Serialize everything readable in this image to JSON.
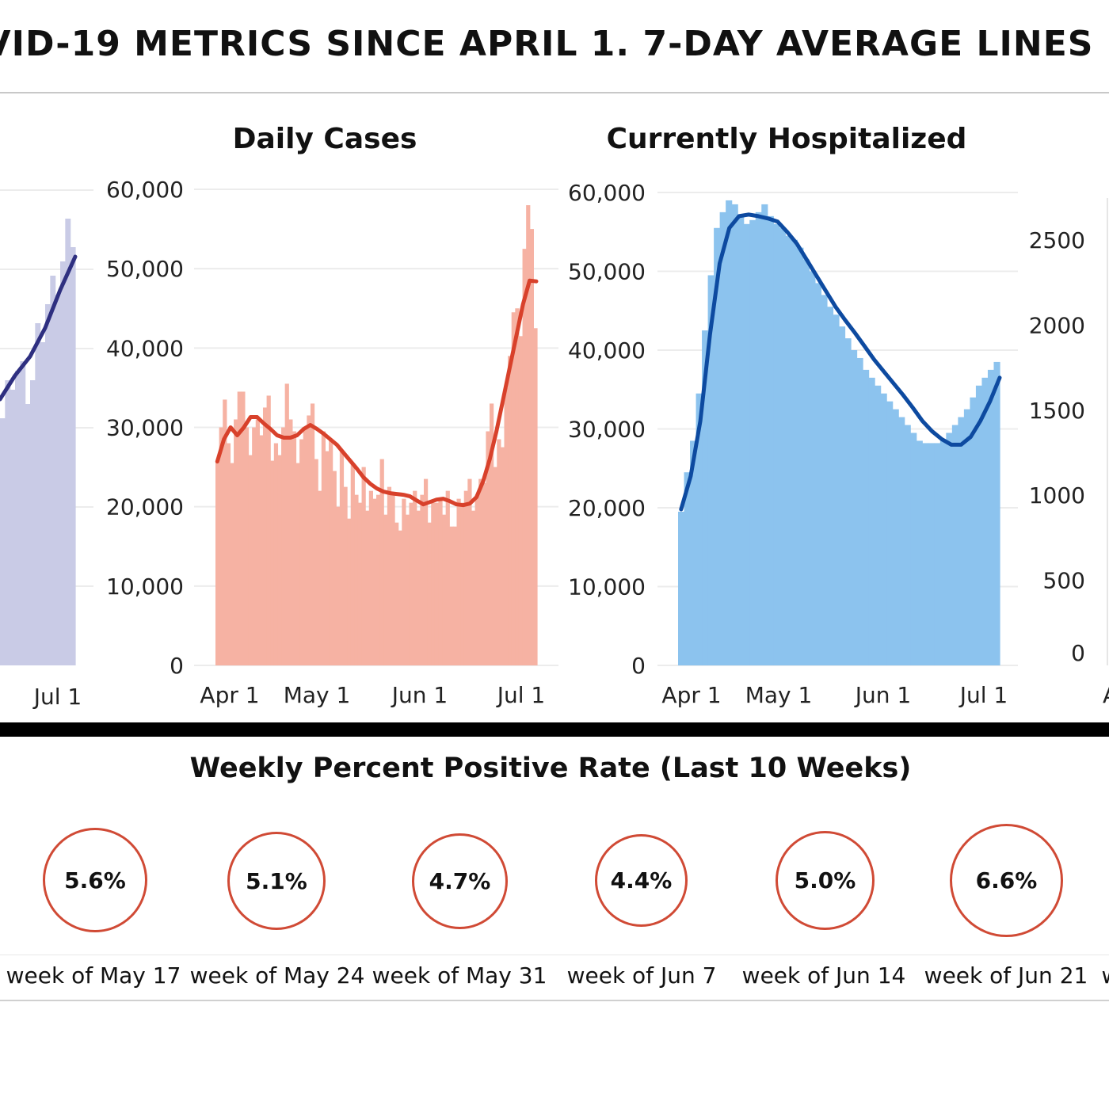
{
  "page": {
    "title": "VID-19 METRICS SINCE APRIL 1. 7-DAY AVERAGE LINES",
    "rate_section_title": "Weekly Percent Positive Rate (Last 10 Weeks)"
  },
  "colors": {
    "tests_bar": "#c9cbe6",
    "tests_line": "#2e2f80",
    "cases_bar": "#f6b2a3",
    "cases_line": "#d8412b",
    "hosp_bar": "#8cc3ee",
    "hosp_line": "#0d4aa0",
    "circle": "#d04a35"
  },
  "chart_data": [
    {
      "type": "bar",
      "id": "tests",
      "title": "",
      "x_ticks": [
        "Jul 1"
      ],
      "y_ticks": [],
      "series": [
        {
          "kind": "bar",
          "x": [
            "Jun 22",
            "Jun 23",
            "Jun 24",
            "Jun 25",
            "Jun 26",
            "Jun 27",
            "Jun 28",
            "Jun 29",
            "Jun 30",
            "Jul 1",
            "Jul 2",
            "Jul 3",
            "Jul 4",
            "Jul 5",
            "Jul 6"
          ],
          "values": [
            0.52,
            0.6,
            0.58,
            0.62,
            0.64,
            0.55,
            0.6,
            0.72,
            0.68,
            0.76,
            0.82,
            0.78,
            0.85,
            0.94,
            0.88
          ]
        },
        {
          "kind": "line",
          "x": [
            "Jun 22",
            "Jun 25",
            "Jun 28",
            "Jul 1",
            "Jul 4",
            "Jul 6"
          ],
          "values": [
            0.56,
            0.61,
            0.65,
            0.71,
            0.79,
            0.86
          ]
        }
      ]
    },
    {
      "type": "bar",
      "id": "cases",
      "title": "Daily Cases",
      "x_ticks": [
        "Apr 1",
        "May 1",
        "Jun 1",
        "Jul 1"
      ],
      "y_ticks": [
        "0",
        "10,000",
        "20,000",
        "30,000",
        "40,000",
        "50,000",
        "60,000"
      ],
      "ylim": [
        0,
        60000
      ],
      "series": [
        {
          "kind": "bar",
          "x_start": "Mar 31",
          "values": [
            25700,
            30000,
            33500,
            28000,
            25500,
            31000,
            34500,
            34500,
            30000,
            26500,
            30000,
            31000,
            29000,
            32500,
            34000,
            25800,
            28000,
            26500,
            30000,
            35500,
            31000,
            29500,
            25500,
            28500,
            30000,
            31500,
            33000,
            26000,
            22000,
            29500,
            27000,
            28500,
            24500,
            20000,
            27000,
            22500,
            18500,
            25500,
            21500,
            20500,
            25000,
            19500,
            22000,
            21000,
            21500,
            26000,
            19000,
            22500,
            21500,
            18000,
            17000,
            21000,
            19000,
            20500,
            22000,
            19500,
            21500,
            23500,
            18000,
            20500,
            20500,
            21000,
            19000,
            22000,
            17500,
            17500,
            21000,
            20500,
            22000,
            23500,
            19500,
            21500,
            23500,
            23000,
            29500,
            33000,
            25000,
            28500,
            27500,
            35000,
            39000,
            44500,
            45000,
            41500,
            52500,
            58000,
            55000,
            42500
          ]
        },
        {
          "kind": "line",
          "x_start": "Mar 31",
          "values": [
            25700,
            28500,
            30000,
            29000,
            30000,
            31300,
            31300,
            30500,
            29800,
            29000,
            28700,
            28700,
            29000,
            29800,
            30300,
            29800,
            29200,
            28500,
            27800,
            26800,
            25800,
            24800,
            23700,
            22900,
            22300,
            21900,
            21700,
            21600,
            21500,
            21300,
            20800,
            20300,
            20600,
            20900,
            21000,
            20700,
            20300,
            20200,
            20400,
            21200,
            23200,
            26000,
            29500,
            33500,
            37500,
            41500,
            45500,
            48500,
            48400
          ]
        }
      ]
    },
    {
      "type": "bar",
      "id": "hospitalized",
      "title": "Currently Hospitalized",
      "x_ticks": [
        "Apr 1",
        "May 1",
        "Jun 1",
        "Jul 1"
      ],
      "y_ticks": [
        "0",
        "10,000",
        "20,000",
        "30,000",
        "40,000",
        "50,000",
        "60,000"
      ],
      "ylim": [
        0,
        60000
      ],
      "series": [
        {
          "kind": "bar",
          "x_start": "Mar 31",
          "values": [
            19500,
            24500,
            28500,
            34500,
            42500,
            49500,
            55500,
            57500,
            59000,
            58500,
            57000,
            56000,
            56500,
            57500,
            58500,
            57000,
            56000,
            55500,
            54500,
            54000,
            53000,
            51500,
            50000,
            48500,
            47000,
            45500,
            44500,
            43000,
            41500,
            40000,
            39000,
            37500,
            36500,
            35500,
            34500,
            33500,
            32500,
            31500,
            30500,
            29500,
            28500,
            28200,
            28200,
            28200,
            28500,
            29500,
            30500,
            31500,
            32500,
            34000,
            35500,
            36500,
            37500,
            38500
          ]
        },
        {
          "kind": "line",
          "x_start": "Mar 31",
          "values": [
            19800,
            24000,
            31000,
            42000,
            51000,
            55500,
            57000,
            57200,
            57000,
            56700,
            56300,
            55000,
            53500,
            51500,
            49500,
            47500,
            45500,
            43800,
            42200,
            40500,
            38800,
            37300,
            35800,
            34300,
            32700,
            31000,
            29700,
            28700,
            28000,
            28000,
            29000,
            31000,
            33500,
            36500
          ]
        }
      ]
    },
    {
      "type": "bar",
      "id": "right-axis",
      "title": "",
      "y_ticks": [
        "0",
        "500",
        "1000",
        "1500",
        "2000",
        "2500"
      ],
      "x_ticks": [
        "A"
      ]
    }
  ],
  "rates": [
    {
      "value": "5.6%",
      "label": "week of May 17"
    },
    {
      "value": "5.1%",
      "label": "week of May 24"
    },
    {
      "value": "4.7%",
      "label": "week of May 31"
    },
    {
      "value": "4.4%",
      "label": "week of Jun 7"
    },
    {
      "value": "5.0%",
      "label": "week of Jun 14"
    },
    {
      "value": "6.6%",
      "label": "week of Jun 21"
    },
    {
      "value": "",
      "label": "w"
    }
  ]
}
